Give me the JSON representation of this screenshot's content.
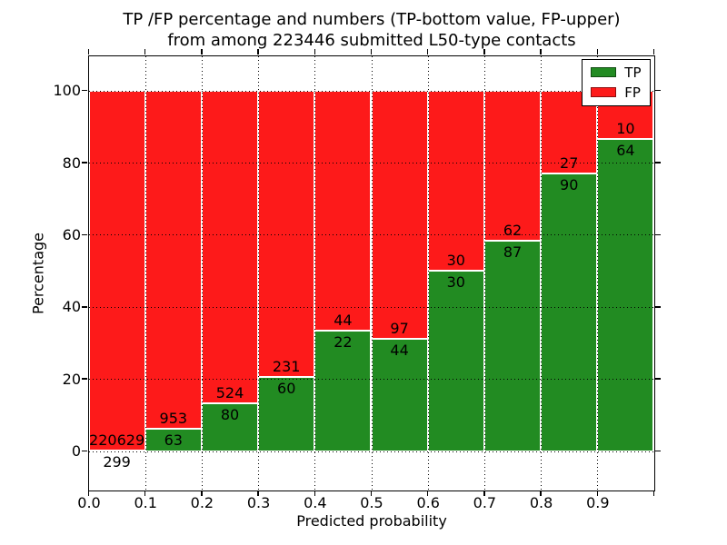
{
  "figure": {
    "title_line1": "TP /FP percentage and numbers (TP-bottom value, FP-upper)",
    "title_line2": "from among 223446 submitted L50-type contacts",
    "xlabel": "Predicted probability",
    "ylabel": "Percentage"
  },
  "axes": {
    "xtick_labels": [
      "0.0",
      "0.1",
      "0.2",
      "0.3",
      "0.4",
      "0.5",
      "0.6",
      "0.7",
      "0.8",
      "0.9"
    ],
    "ytick_values": [
      0,
      20,
      40,
      60,
      80,
      100
    ],
    "ytick_labels": [
      "0",
      "20",
      "40",
      "60",
      "80",
      "100"
    ],
    "xlim": [
      0.0,
      1.0
    ],
    "ylim": [
      -10.8,
      109.6
    ],
    "grid_style": "dotted"
  },
  "legend": {
    "position": "upper-right",
    "items": [
      {
        "label": "TP",
        "color": "#228b22"
      },
      {
        "label": "FP",
        "color": "#fd1a1a"
      }
    ]
  },
  "chart_data": {
    "type": "bar",
    "stacked": true,
    "title": "TP /FP percentage and numbers (TP-bottom value, FP-upper) from among 223446 submitted L50-type contacts",
    "xlabel": "Predicted probability",
    "ylabel": "Percentage",
    "total_submitted_contacts": 223446,
    "bin_width": 0.1,
    "bins": [
      "0.0-0.1",
      "0.1-0.2",
      "0.2-0.3",
      "0.3-0.4",
      "0.4-0.5",
      "0.5-0.6",
      "0.6-0.7",
      "0.7-0.8",
      "0.8-0.9",
      "0.9-1.0"
    ],
    "series": [
      {
        "name": "TP",
        "color": "#228b22",
        "counts": [
          299,
          63,
          80,
          60,
          22,
          44,
          30,
          87,
          90,
          64
        ],
        "percent": [
          0.14,
          6.2,
          13.25,
          20.62,
          33.33,
          31.21,
          50.0,
          58.39,
          76.92,
          86.49
        ]
      },
      {
        "name": "FP",
        "color": "#fd1a1a",
        "counts": [
          220629,
          953,
          524,
          231,
          44,
          97,
          30,
          62,
          27,
          10
        ],
        "percent": [
          99.86,
          93.8,
          86.75,
          79.38,
          66.67,
          68.79,
          50.0,
          41.61,
          23.08,
          13.51
        ]
      }
    ],
    "label_convention": "TP count drawn below segment boundary, FP count drawn above segment boundary",
    "stack_total_percent": 100,
    "grid": true,
    "legend_position": "upper right"
  }
}
